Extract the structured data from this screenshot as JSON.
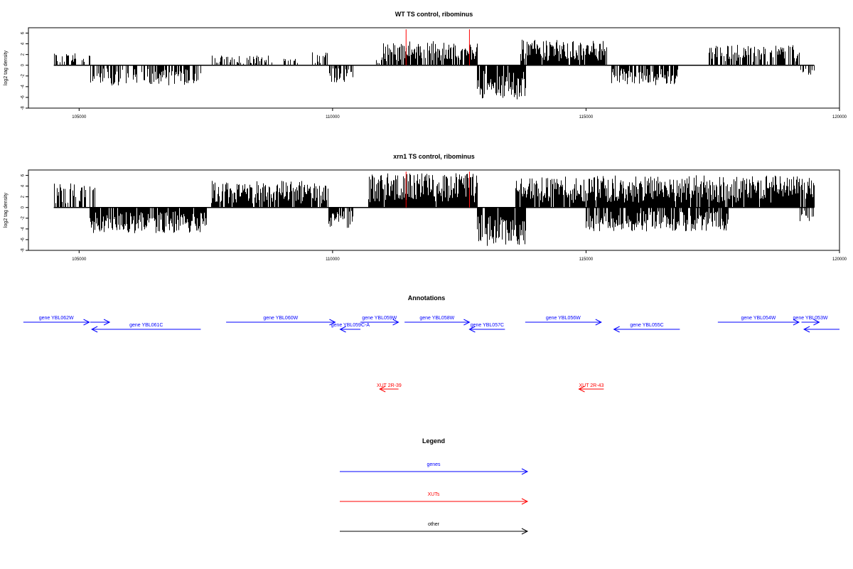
{
  "colors": {
    "gene": "#0000ff",
    "xut": "#ff0000",
    "other": "#000000",
    "bar": "#000000",
    "highlight": "#ff0000"
  },
  "chart_data": [
    {
      "type": "bar",
      "title": "WT TS control, ribominus",
      "xlabel": "",
      "ylabel": "log2 tag density",
      "xlim": [
        104000,
        120000
      ],
      "ylim": [
        -8,
        7
      ],
      "x_ticks": [
        105000,
        110000,
        115000,
        120000
      ],
      "y_ticks": [
        -8,
        -6,
        -4,
        -2,
        0,
        2,
        4,
        6
      ],
      "grid": false,
      "data_extent": [
        104500,
        119500
      ],
      "highlight_lines": [
        {
          "x": 111450,
          "y": 6.7
        },
        {
          "x": 112700,
          "y": 6.7
        }
      ],
      "positive_regions": [
        {
          "start": 104500,
          "end": 105250,
          "max": 2.5,
          "density": 0.35
        },
        {
          "start": 107600,
          "end": 108900,
          "max": 1.8,
          "density": 0.4
        },
        {
          "start": 109000,
          "end": 109300,
          "max": 1.2,
          "density": 0.3
        },
        {
          "start": 109600,
          "end": 109900,
          "max": 2.5,
          "density": 0.5
        },
        {
          "start": 110800,
          "end": 111000,
          "max": 1.5,
          "density": 0.4
        },
        {
          "start": 111000,
          "end": 112850,
          "max": 4.5,
          "density": 0.85
        },
        {
          "start": 113700,
          "end": 115400,
          "max": 4.8,
          "density": 0.95
        },
        {
          "start": 117400,
          "end": 119200,
          "max": 3.8,
          "density": 0.6
        }
      ],
      "negative_regions": [
        {
          "start": 105200,
          "end": 107400,
          "max": 3.8,
          "density": 0.6
        },
        {
          "start": 109900,
          "end": 110400,
          "max": 3.2,
          "density": 0.6
        },
        {
          "start": 112850,
          "end": 113800,
          "max": 6.5,
          "density": 0.9
        },
        {
          "start": 115500,
          "end": 116800,
          "max": 3.8,
          "density": 0.7
        },
        {
          "start": 119200,
          "end": 119500,
          "max": 2.8,
          "density": 0.5
        }
      ]
    },
    {
      "type": "bar",
      "title": "xrn1 TS control, ribominus",
      "xlabel": "",
      "ylabel": "log2 tag density",
      "xlim": [
        104000,
        120000
      ],
      "ylim": [
        -8,
        7
      ],
      "x_ticks": [
        105000,
        110000,
        115000,
        120000
      ],
      "y_ticks": [
        -8,
        -6,
        -4,
        -2,
        0,
        2,
        4,
        6
      ],
      "grid": false,
      "data_extent": [
        104500,
        119500
      ],
      "highlight_lines": [
        {
          "x": 111450,
          "y": 6.7
        },
        {
          "x": 112700,
          "y": 6.7
        }
      ],
      "positive_regions": [
        {
          "start": 104500,
          "end": 105300,
          "max": 4.5,
          "density": 0.6
        },
        {
          "start": 107600,
          "end": 109900,
          "max": 5.0,
          "density": 0.9
        },
        {
          "start": 110700,
          "end": 112850,
          "max": 6.5,
          "density": 0.95
        },
        {
          "start": 113600,
          "end": 119500,
          "max": 6.0,
          "density": 0.95
        }
      ],
      "negative_regions": [
        {
          "start": 105200,
          "end": 107500,
          "max": 4.8,
          "density": 0.9
        },
        {
          "start": 109900,
          "end": 110400,
          "max": 3.8,
          "density": 0.8
        },
        {
          "start": 112850,
          "end": 113800,
          "max": 7.5,
          "density": 0.95
        },
        {
          "start": 115000,
          "end": 117800,
          "max": 4.5,
          "density": 0.85
        },
        {
          "start": 119200,
          "end": 119500,
          "max": 2.8,
          "density": 0.5
        }
      ]
    }
  ],
  "annotations": {
    "title": "Annotations",
    "genes": [
      {
        "label": "gene YBL062W",
        "strand": "+",
        "start": 103900,
        "end": 105200
      },
      {
        "label": "gene YBL062W",
        "strand": "+",
        "start": 105220,
        "end": 105600,
        "label_hidden": true
      },
      {
        "label": "gene YBL061C",
        "strand": "-",
        "start": 105250,
        "end": 107400
      },
      {
        "label": "gene YBL060W",
        "strand": "+",
        "start": 107900,
        "end": 110050
      },
      {
        "label": "gene YBL059C-A",
        "strand": "-",
        "start": 110150,
        "end": 110550
      },
      {
        "label": "gene YBL059W",
        "strand": "+",
        "start": 110550,
        "end": 111300
      },
      {
        "label": "gene YBL058W",
        "strand": "+",
        "start": 111420,
        "end": 112700
      },
      {
        "label": "gene YBL057C",
        "strand": "-",
        "start": 112700,
        "end": 113400
      },
      {
        "label": "gene YBL056W",
        "strand": "+",
        "start": 113800,
        "end": 115300
      },
      {
        "label": "gene YBL055C",
        "strand": "-",
        "start": 115550,
        "end": 116850
      },
      {
        "label": "gene YBL054W",
        "strand": "+",
        "start": 117600,
        "end": 119200
      },
      {
        "label": "gene YBL053W",
        "strand": "+",
        "start": 119250,
        "end": 119600
      },
      {
        "label": "gene YBL053W",
        "strand": "-",
        "start": 119300,
        "end": 120000,
        "label_hidden": true
      }
    ],
    "xuts": [
      {
        "label": "XUT 2R-39",
        "strand": "-",
        "start": 110930,
        "end": 111300
      },
      {
        "label": "XUT 2R-43",
        "strand": "-",
        "start": 114860,
        "end": 115350
      }
    ]
  },
  "legend": {
    "title": "Legend",
    "items": [
      {
        "label": "genes",
        "color_key": "gene"
      },
      {
        "label": "XUTs",
        "color_key": "xut"
      },
      {
        "label": "other",
        "color_key": "other"
      }
    ]
  }
}
